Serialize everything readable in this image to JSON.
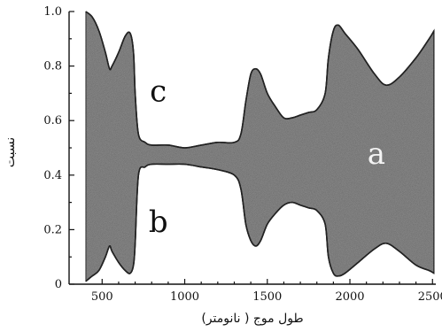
{
  "chart_data": {
    "type": "area",
    "xlabel": "طول موج ( نانومتر)",
    "ylabel": "نسبت",
    "xlim": [
      300,
      2520
    ],
    "ylim": [
      0,
      1.0
    ],
    "xticks": [
      500,
      1000,
      1500,
      2000,
      2500
    ],
    "yticks": [
      0,
      0.2,
      0.4,
      0.6,
      0.8,
      1.0
    ],
    "ytick_labels": [
      "0",
      "0.2",
      "0.4",
      "0.6",
      "0.8",
      "1.0"
    ],
    "grid": false,
    "colors": {
      "band_fill": "#8a8a8a",
      "outline": "#222222",
      "background": "#ffffff"
    },
    "regions": [
      {
        "label": "c",
        "x": 840,
        "y": 0.71
      },
      {
        "label": "a",
        "x": 2160,
        "y": 0.48
      },
      {
        "label": "b",
        "x": 840,
        "y": 0.23
      }
    ],
    "series": [
      {
        "x": [
          400,
          440,
          480,
          520,
          545,
          560,
          600,
          640,
          670,
          690,
          700,
          720,
          760,
          800,
          900,
          1000,
          1100,
          1200,
          1300,
          1340,
          1370,
          1400,
          1430,
          1460,
          1500,
          1550,
          1600,
          1650,
          1700,
          1750,
          1800,
          1850,
          1870,
          1900,
          1930,
          1970,
          2050,
          2150,
          2220,
          2300,
          2400,
          2480,
          2510
        ],
        "values": [
          1.0,
          0.98,
          0.93,
          0.85,
          0.79,
          0.8,
          0.85,
          0.91,
          0.92,
          0.85,
          0.7,
          0.55,
          0.52,
          0.51,
          0.51,
          0.5,
          0.51,
          0.52,
          0.52,
          0.55,
          0.67,
          0.77,
          0.79,
          0.77,
          0.7,
          0.65,
          0.61,
          0.61,
          0.62,
          0.63,
          0.64,
          0.7,
          0.83,
          0.93,
          0.95,
          0.92,
          0.86,
          0.77,
          0.73,
          0.76,
          0.83,
          0.9,
          0.93
        ]
      },
      {
        "x": [
          400,
          440,
          480,
          520,
          545,
          560,
          600,
          640,
          670,
          690,
          700,
          720,
          760,
          800,
          900,
          1000,
          1100,
          1200,
          1300,
          1340,
          1370,
          1400,
          1430,
          1460,
          1500,
          1550,
          1600,
          1650,
          1700,
          1750,
          1800,
          1850,
          1870,
          1900,
          1930,
          1970,
          2050,
          2150,
          2220,
          2300,
          2400,
          2480,
          2510
        ],
        "values": [
          0.01,
          0.03,
          0.05,
          0.1,
          0.14,
          0.12,
          0.08,
          0.05,
          0.04,
          0.07,
          0.15,
          0.4,
          0.43,
          0.44,
          0.44,
          0.44,
          0.43,
          0.42,
          0.4,
          0.35,
          0.22,
          0.16,
          0.14,
          0.16,
          0.22,
          0.26,
          0.29,
          0.3,
          0.29,
          0.28,
          0.27,
          0.22,
          0.1,
          0.04,
          0.03,
          0.04,
          0.08,
          0.13,
          0.15,
          0.12,
          0.07,
          0.05,
          0.04
        ]
      }
    ]
  }
}
